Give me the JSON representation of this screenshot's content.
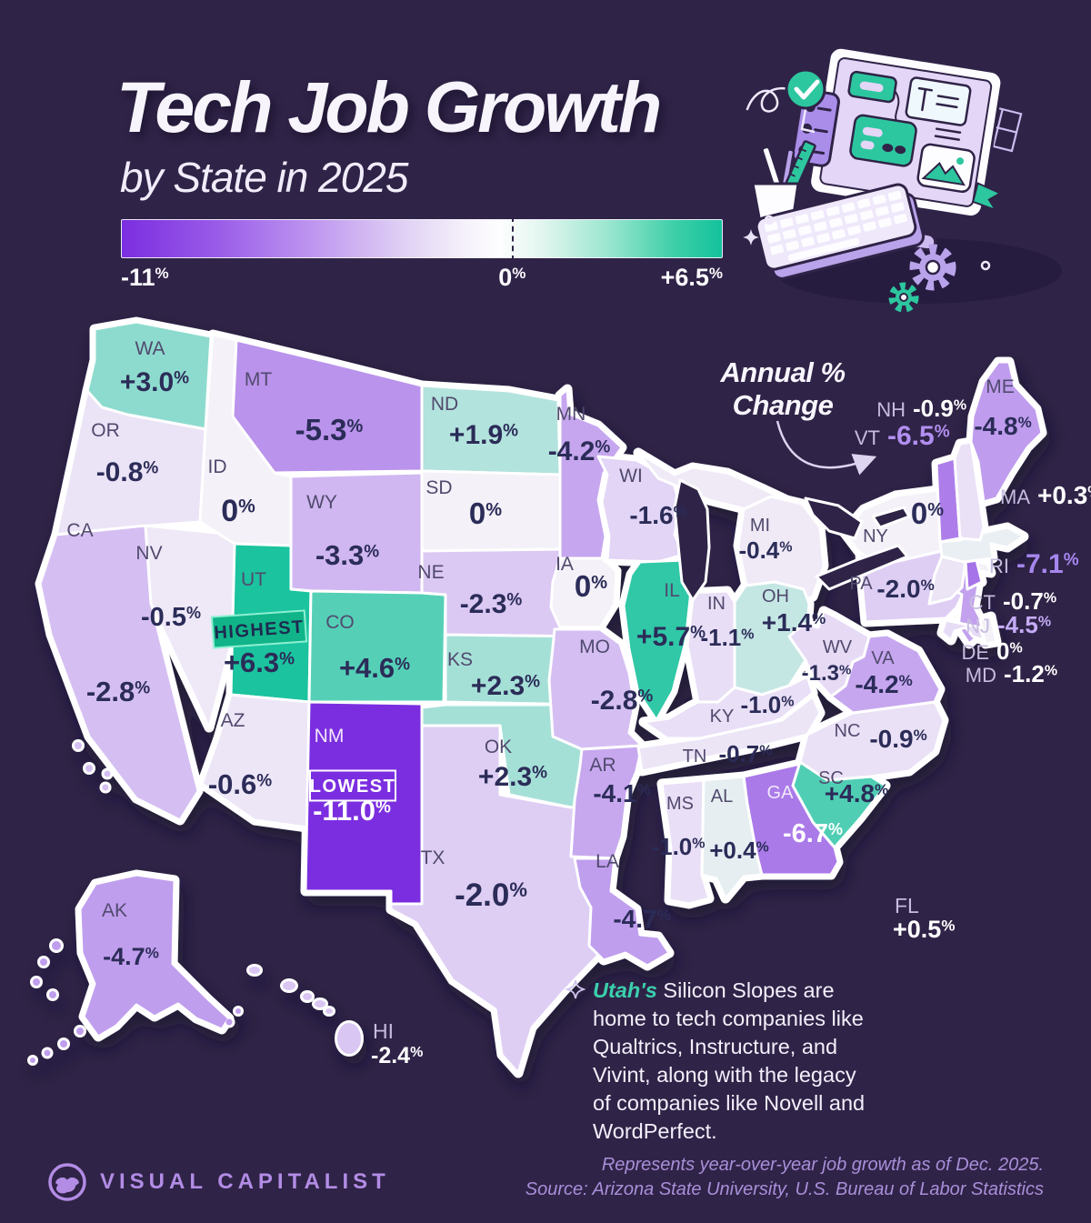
{
  "header": {
    "title": "Tech Job Growth",
    "subtitle": "by State in 2025"
  },
  "legend": {
    "min": "-11%",
    "zero": "0%",
    "max": "+6.5%"
  },
  "annotation": {
    "line1": "Annual %",
    "line2": "Change"
  },
  "badges": {
    "highest": "HIGHEST",
    "lowest": "LOWEST"
  },
  "callout": {
    "icon": "sparkle-icon",
    "highlight": "Utah's",
    "text": " Silicon Slopes are home to tech companies like Qualtrics, Instructure, and Vivint, along with the legacy of companies like Novell and WordPerfect."
  },
  "footer": {
    "brand": "VISUAL CAPITALIST",
    "note_line1": "Represents year-over-year job growth as of Dec. 2025.",
    "note_line2": "Source: Arizona State University, U.S. Bureau of Labor Statistics"
  },
  "colors": {
    "background": "#2f2347",
    "map_negative_end": "#7b2ee0",
    "map_zero": "#f4f1f8",
    "map_positive_end": "#14c29c",
    "value_text": "#2b2c58",
    "state_label": "#514a6e",
    "external_label": "#c6bcdf",
    "accent_teal": "#3bd0ad",
    "brand": "#b28ce5",
    "highlight_value_purple": "#b28ff0"
  },
  "chart_data": {
    "type": "heatmap",
    "subtype": "us-choropleth-map",
    "title": "Tech Job Growth by State in 2025",
    "unit": "annual % change",
    "domain": [
      -11,
      6.5
    ],
    "legend_ticks": [
      "-11%",
      "0%",
      "+6.5%"
    ],
    "states": [
      {
        "code": "WA",
        "value": 3.0,
        "display": "+3.0%"
      },
      {
        "code": "OR",
        "value": -0.8,
        "display": "-0.8%"
      },
      {
        "code": "CA",
        "value": -2.8,
        "display": "-2.8%"
      },
      {
        "code": "NV",
        "value": -0.5,
        "display": "-0.5%"
      },
      {
        "code": "ID",
        "value": 0,
        "display": "0%"
      },
      {
        "code": "MT",
        "value": -5.3,
        "display": "-5.3%"
      },
      {
        "code": "WY",
        "value": -3.3,
        "display": "-3.3%"
      },
      {
        "code": "UT",
        "value": 6.3,
        "display": "+6.3%",
        "note": "highest"
      },
      {
        "code": "AZ",
        "value": -0.6,
        "display": "-0.6%"
      },
      {
        "code": "NM",
        "value": -11.0,
        "display": "-11.0%",
        "note": "lowest"
      },
      {
        "code": "CO",
        "value": 4.6,
        "display": "+4.6%"
      },
      {
        "code": "ND",
        "value": 1.9,
        "display": "+1.9%"
      },
      {
        "code": "SD",
        "value": 0,
        "display": "0%"
      },
      {
        "code": "NE",
        "value": -2.3,
        "display": "-2.3%"
      },
      {
        "code": "KS",
        "value": 2.3,
        "display": "+2.3%"
      },
      {
        "code": "OK",
        "value": 2.3,
        "display": "+2.3%"
      },
      {
        "code": "TX",
        "value": -2.0,
        "display": "-2.0%"
      },
      {
        "code": "MN",
        "value": -4.2,
        "display": "-4.2%"
      },
      {
        "code": "IA",
        "value": 0,
        "display": "0%"
      },
      {
        "code": "MO",
        "value": -2.8,
        "display": "-2.8%"
      },
      {
        "code": "AR",
        "value": -4.1,
        "display": "-4.1%"
      },
      {
        "code": "LA",
        "value": -4.7,
        "display": "-4.7%"
      },
      {
        "code": "WI",
        "value": -1.6,
        "display": "-1.6%"
      },
      {
        "code": "IL",
        "value": 5.7,
        "display": "+5.7%"
      },
      {
        "code": "IN",
        "value": -1.1,
        "display": "-1.1%"
      },
      {
        "code": "MI",
        "value": -0.4,
        "display": "-0.4%"
      },
      {
        "code": "OH",
        "value": 1.4,
        "display": "+1.4%"
      },
      {
        "code": "KY",
        "value": -1.0,
        "display": "-1.0%"
      },
      {
        "code": "TN",
        "value": -0.7,
        "display": "-0.7%"
      },
      {
        "code": "MS",
        "value": -1.0,
        "display": "-1.0%"
      },
      {
        "code": "AL",
        "value": 0.4,
        "display": "+0.4%"
      },
      {
        "code": "GA",
        "value": -6.7,
        "display": "-6.7%"
      },
      {
        "code": "FL",
        "value": 0.5,
        "display": "+0.5%"
      },
      {
        "code": "SC",
        "value": 4.8,
        "display": "+4.8%"
      },
      {
        "code": "NC",
        "value": -0.9,
        "display": "-0.9%"
      },
      {
        "code": "VA",
        "value": -4.2,
        "display": "-4.2%"
      },
      {
        "code": "WV",
        "value": -1.3,
        "display": "-1.3%"
      },
      {
        "code": "PA",
        "value": -2.0,
        "display": "-2.0%"
      },
      {
        "code": "NY",
        "value": 0,
        "display": "0%"
      },
      {
        "code": "NJ",
        "value": -4.5,
        "display": "-4.5%"
      },
      {
        "code": "DE",
        "value": 0,
        "display": "0%"
      },
      {
        "code": "MD",
        "value": -1.2,
        "display": "-1.2%"
      },
      {
        "code": "CT",
        "value": -0.7,
        "display": "-0.7%"
      },
      {
        "code": "RI",
        "value": -7.1,
        "display": "-7.1%"
      },
      {
        "code": "MA",
        "value": 0.3,
        "display": "+0.3%"
      },
      {
        "code": "VT",
        "value": -6.5,
        "display": "-6.5%"
      },
      {
        "code": "NH",
        "value": -0.9,
        "display": "-0.9%"
      },
      {
        "code": "ME",
        "value": -4.8,
        "display": "-4.8%"
      },
      {
        "code": "AK",
        "value": -4.7,
        "display": "-4.7%"
      },
      {
        "code": "HI",
        "value": -2.4,
        "display": "-2.4%"
      }
    ]
  }
}
